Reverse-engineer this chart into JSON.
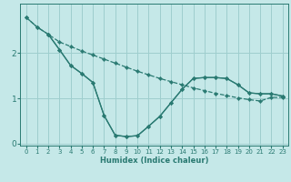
{
  "xlabel": "Humidex (Indice chaleur)",
  "bg_color": "#c5e8e8",
  "grid_color": "#9ecece",
  "line_color": "#2a7a72",
  "xlim": [
    -0.5,
    23.5
  ],
  "ylim": [
    -0.05,
    3.1
  ],
  "yticks": [
    0,
    1,
    2
  ],
  "xticks": [
    0,
    1,
    2,
    3,
    4,
    5,
    6,
    7,
    8,
    9,
    10,
    11,
    12,
    13,
    14,
    15,
    16,
    17,
    18,
    19,
    20,
    21,
    22,
    23
  ],
  "line1_x": [
    0,
    1,
    2,
    3,
    4,
    5,
    6,
    7,
    8,
    9,
    10,
    11,
    12,
    13,
    14,
    15,
    16,
    17,
    18,
    19,
    20,
    21,
    22,
    23
  ],
  "line1_y": [
    2.8,
    2.58,
    2.42,
    2.25,
    2.15,
    2.05,
    1.96,
    1.87,
    1.78,
    1.69,
    1.6,
    1.52,
    1.44,
    1.37,
    1.3,
    1.23,
    1.17,
    1.11,
    1.06,
    1.01,
    0.97,
    0.94,
    1.02,
    1.02
  ],
  "line2_x": [
    0,
    1,
    2,
    3,
    4,
    5,
    6,
    7,
    8,
    9,
    10,
    11,
    12,
    13,
    14,
    15,
    16,
    17,
    18,
    19,
    20,
    21,
    22,
    23
  ],
  "line2_y": [
    2.8,
    2.58,
    2.42,
    2.08,
    1.73,
    1.55,
    1.35,
    0.62,
    0.18,
    0.15,
    0.17,
    0.38,
    0.6,
    0.9,
    1.2,
    1.44,
    1.46,
    1.46,
    1.44,
    1.3,
    1.12,
    1.1,
    1.1,
    1.05
  ],
  "line3_x": [
    2,
    3,
    4,
    5,
    6,
    7,
    8,
    9,
    10,
    11,
    12,
    13,
    14,
    15,
    16,
    17,
    18,
    19,
    20,
    21,
    22,
    23
  ],
  "line3_y": [
    2.42,
    2.08,
    1.73,
    1.55,
    1.35,
    0.62,
    0.18,
    0.15,
    0.17,
    0.38,
    0.6,
    0.9,
    1.2,
    1.44,
    1.46,
    1.46,
    1.44,
    1.3,
    1.12,
    1.1,
    1.1,
    1.05
  ]
}
